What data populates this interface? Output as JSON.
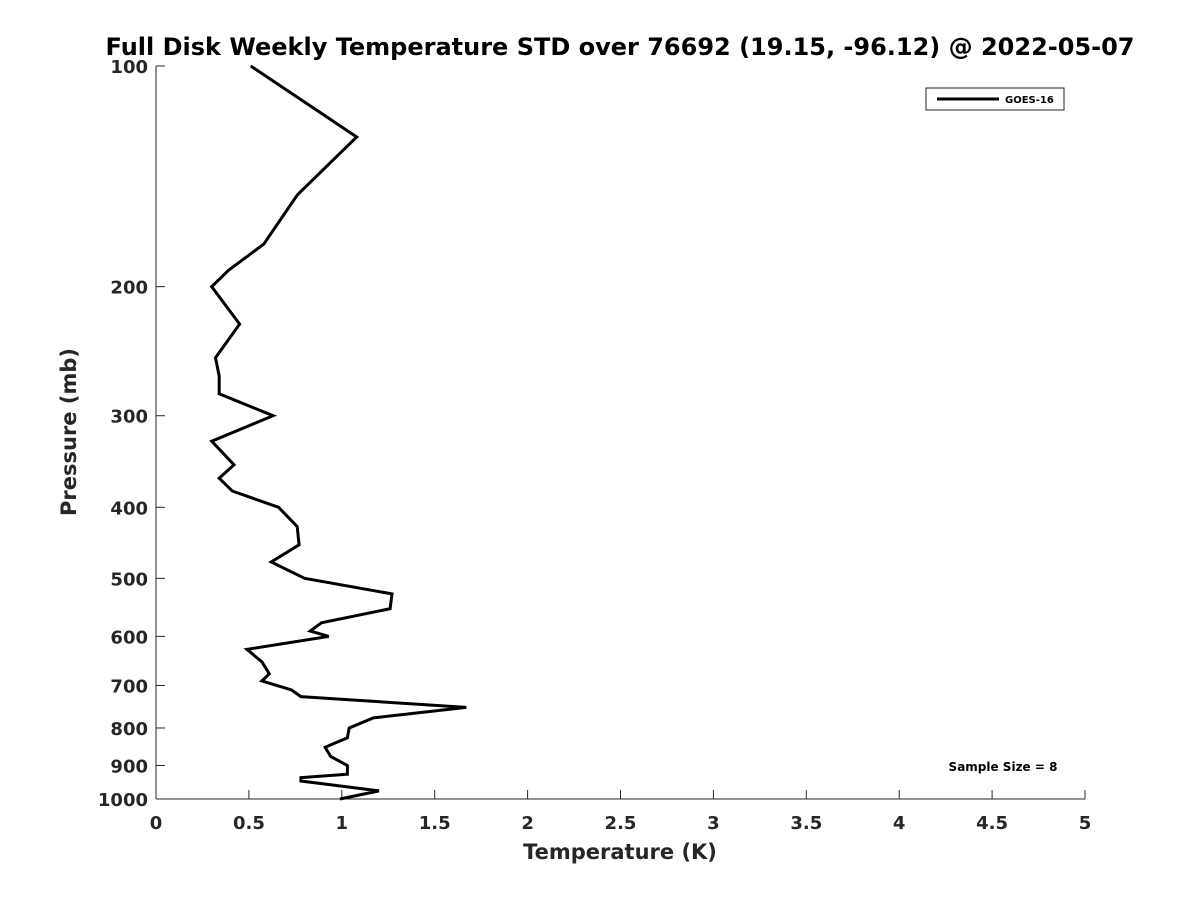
{
  "chart_data": {
    "type": "line",
    "title": "Full Disk Weekly Temperature STD over 76692 (19.15, -96.12) @ 2022-05-07",
    "xlabel": "Temperature (K)",
    "ylabel": "Pressure (mb)",
    "xlim": [
      0,
      5
    ],
    "ylim": [
      100,
      1000
    ],
    "y_scale": "log",
    "y_reversed": true,
    "x_ticks": [
      "0",
      "0.5",
      "1",
      "1.5",
      "2",
      "2.5",
      "3",
      "3.5",
      "4",
      "4.5",
      "5"
    ],
    "y_ticks": [
      "100",
      "200",
      "300",
      "400",
      "500",
      "600",
      "700",
      "800",
      "900",
      "1000"
    ],
    "grid": false,
    "legend_position": "top-right",
    "annotation": "Sample Size = 8",
    "series": [
      {
        "name": "GOES-16",
        "color": "#000000",
        "x": [
          0.51,
          1.08,
          0.76,
          0.58,
          0.39,
          0.3,
          0.45,
          0.32,
          0.34,
          0.34,
          0.63,
          0.3,
          0.42,
          0.34,
          0.41,
          0.66,
          0.76,
          0.77,
          0.62,
          0.8,
          1.27,
          1.26,
          0.89,
          0.83,
          0.93,
          0.49,
          0.57,
          0.61,
          0.57,
          0.73,
          0.78,
          1.67,
          1.17,
          1.04,
          1.03,
          0.91,
          0.94,
          1.03,
          1.03,
          0.78,
          0.78,
          1.2,
          0.99
        ],
        "y": [
          100,
          125,
          150,
          175,
          190,
          200,
          225,
          250,
          265,
          280,
          300,
          325,
          350,
          365,
          380,
          400,
          425,
          450,
          475,
          500,
          525,
          550,
          575,
          590,
          600,
          625,
          650,
          675,
          690,
          710,
          725,
          750,
          775,
          800,
          825,
          850,
          875,
          900,
          925,
          935,
          945,
          975,
          1000
        ]
      }
    ]
  }
}
